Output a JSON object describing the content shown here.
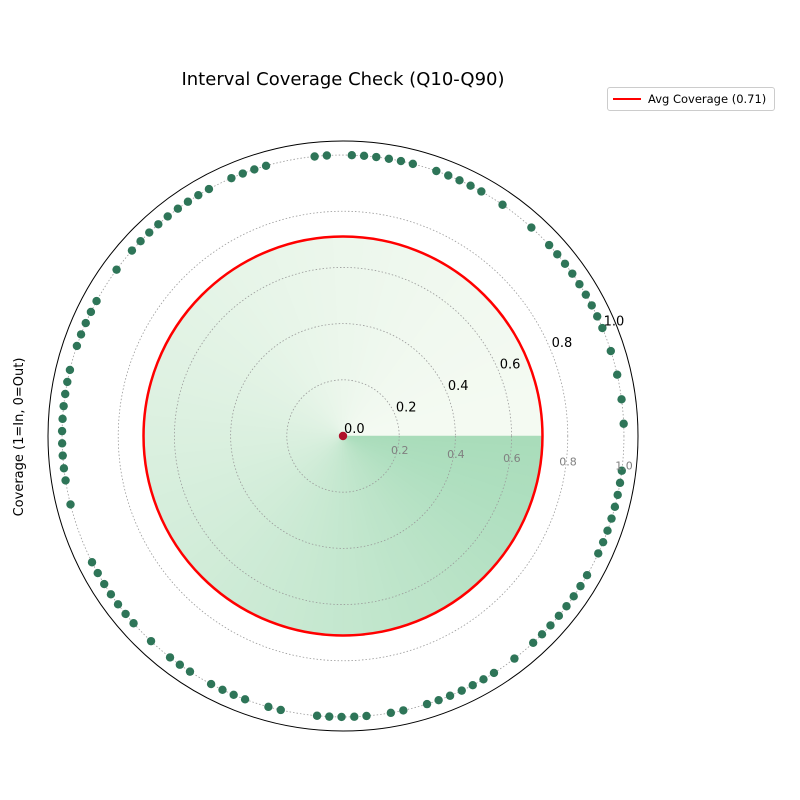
{
  "chart_data": {
    "type": "scatter",
    "projection": "polar",
    "title": "Interval Coverage Check (Q10-Q90)",
    "ylabel": "Coverage (1=In, 0=Out)",
    "rlim": [
      0,
      1.05
    ],
    "r_ticks": [
      "0.0",
      "0.2",
      "0.4",
      "0.6",
      "0.8",
      "1.0"
    ],
    "inner_grid_ticks": [
      "0.2",
      "0.4",
      "0.6",
      "0.8",
      "1.0"
    ],
    "grid": true,
    "legend": {
      "position": "upper-right",
      "entries": [
        {
          "label": "Avg Coverage (0.71)",
          "color": "#ff0000"
        }
      ]
    },
    "average_coverage": 0.71,
    "fill_colors": {
      "light": "#f4faf2",
      "dark": "#a8dcba"
    },
    "series": [
      {
        "kind": "points",
        "color": "#2e7558",
        "r": 1,
        "theta_deg": [
          2.5,
          7.5,
          12.6,
          17.6,
          22.6,
          25.2,
          27.7,
          30.2,
          32.7,
          35.3,
          37.8,
          40.3,
          42.8,
          47.9,
          55.4,
          60.5,
          63.0,
          65.5,
          68.0,
          70.6,
          75.6,
          78.1,
          80.6,
          83.2,
          85.7,
          88.2,
          93.3,
          95.8,
          105.9,
          108.4,
          110.9,
          113.4,
          118.5,
          121.0,
          123.5,
          126.0,
          128.6,
          131.1,
          133.6,
          136.1,
          138.7,
          143.7,
          151.3,
          153.8,
          156.3,
          158.8,
          161.3,
          166.4,
          168.9,
          171.4,
          173.9,
          176.5,
          179.0,
          181.5,
          184.0,
          186.6,
          189.1,
          194.1,
          206.7,
          209.2,
          211.8,
          214.3,
          216.8,
          219.3,
          221.8,
          226.9,
          232.0,
          234.5,
          237.0,
          242.0,
          244.6,
          247.1,
          249.6,
          254.6,
          257.2,
          264.7,
          267.2,
          269.7,
          272.3,
          274.8,
          279.8,
          282.4,
          287.4,
          289.9,
          292.4,
          295.0,
          297.5,
          300.0,
          302.5,
          307.6,
          312.6,
          315.1,
          317.6,
          320.2,
          322.7,
          325.2,
          327.7,
          330.3,
          335.3,
          337.8,
          340.3,
          342.9,
          345.4,
          347.9,
          350.4,
          352.9
        ]
      },
      {
        "kind": "points",
        "color": "#b0102a",
        "r": 0,
        "count": 1
      }
    ]
  }
}
